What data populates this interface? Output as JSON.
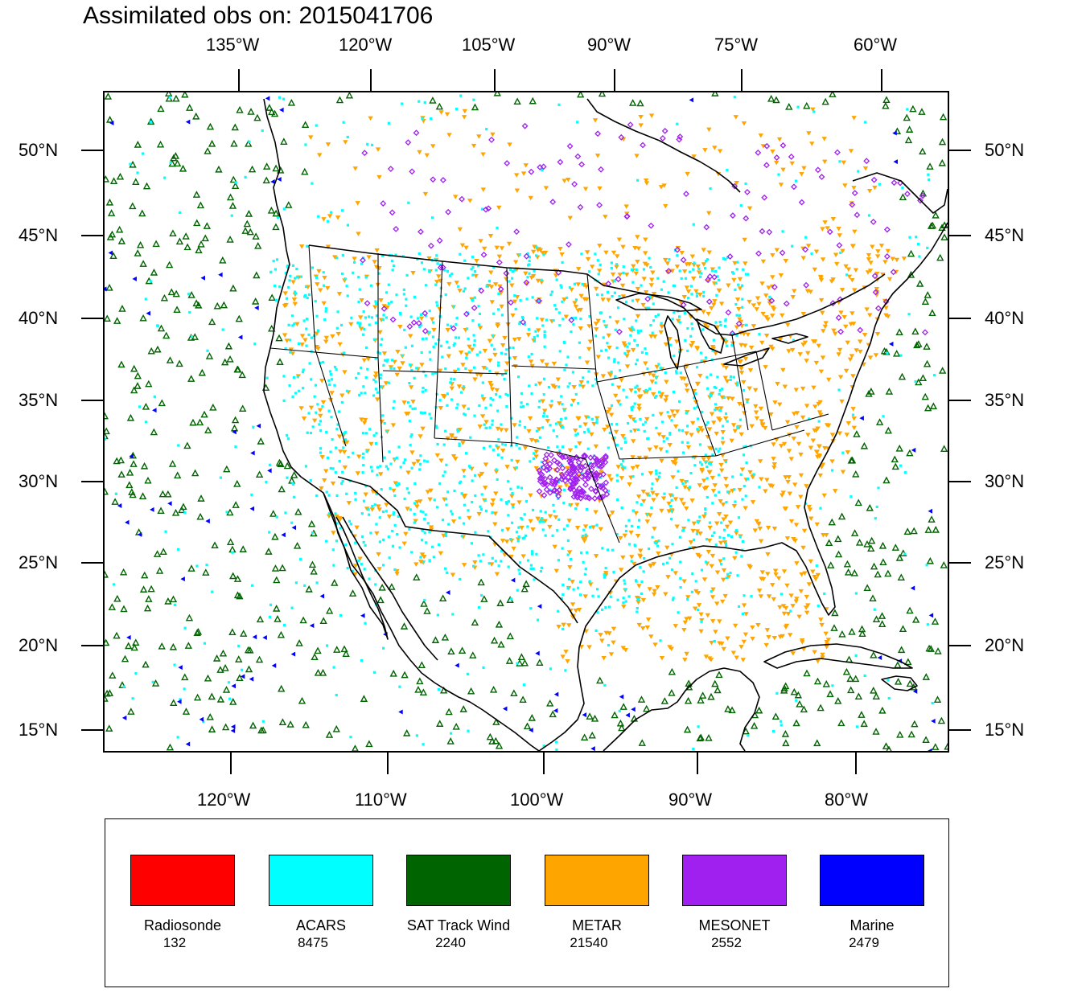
{
  "title": "Assimilated obs on: 2015041706",
  "axes": {
    "lon_top": [
      "135°W",
      "120°W",
      "105°W",
      "90°W",
      "75°W",
      "60°W"
    ],
    "lon_bottom": [
      "120°W",
      "110°W",
      "100°W",
      "90°W",
      "80°W"
    ],
    "lat_left": [
      "50°N",
      "45°N",
      "40°N",
      "35°N",
      "30°N",
      "25°N",
      "20°N",
      "15°N"
    ],
    "lat_right": [
      "50°N",
      "45°N",
      "40°N",
      "35°N",
      "30°N",
      "25°N",
      "20°N",
      "15°N"
    ]
  },
  "legend": {
    "items": [
      {
        "name": "Radiosonde",
        "count": "132",
        "color": "#ff0000"
      },
      {
        "name": "ACARS",
        "count": "8475",
        "color": "#00ffff"
      },
      {
        "name": "SAT Track Wind",
        "count": "2240",
        "color": "#006400"
      },
      {
        "name": "METAR",
        "count": "21540",
        "color": "#ffa500"
      },
      {
        "name": "MESONET",
        "count": "2552",
        "color": "#a020f0"
      },
      {
        "name": "Marine",
        "count": "2479",
        "color": "#0000ff"
      }
    ]
  },
  "map_data": {
    "type": "observation-map",
    "date": "2015041706",
    "lon_range": [
      -128,
      -74
    ],
    "lat_range": [
      14,
      53
    ],
    "symbols": {
      "Radiosonde": "circle",
      "ACARS": "square",
      "SAT Track Wind": "triangle-outline",
      "METAR": "triangle-down",
      "MESONET": "diamond-outline",
      "Marine": "triangle-left"
    }
  }
}
